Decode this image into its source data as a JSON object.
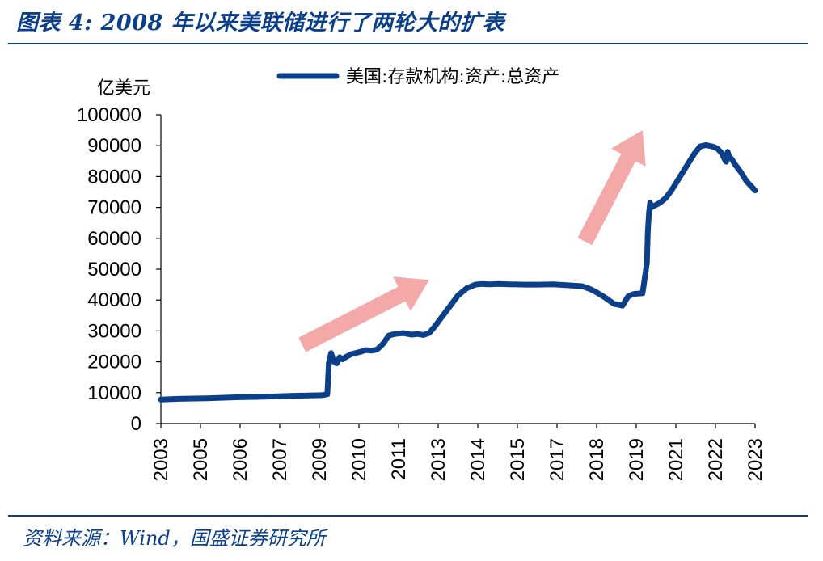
{
  "header": {
    "caption": "图表 4:  2008 年以来美联储进行了两轮大的扩表"
  },
  "footer": {
    "source": "资料来源：Wind，国盛证券研究所"
  },
  "colors": {
    "series": "#0b3f8a",
    "arrow": "#f4a9a9",
    "axis": "#000000",
    "accent": "#0b3f8a"
  },
  "chart_data": {
    "type": "line",
    "title": "",
    "ylabel": "亿美元",
    "xlabel": "",
    "ylim": [
      0,
      100000
    ],
    "yticks": [
      "0",
      "10000",
      "20000",
      "30000",
      "40000",
      "50000",
      "60000",
      "70000",
      "80000",
      "90000",
      "100000"
    ],
    "xticks": [
      "2003",
      "2005",
      "2006",
      "2007",
      "2009",
      "2010",
      "2011",
      "2013",
      "2014",
      "2015",
      "2017",
      "2018",
      "2019",
      "2021",
      "2022",
      "2023"
    ],
    "legend": "美国:存款机构:资产:总资产",
    "legend_position": "top-center",
    "grid": false,
    "series": [
      {
        "name": "美国:存款机构:资产:总资产",
        "x": [
          2002.9,
          2003.5,
          2004.5,
          2005.5,
          2006.5,
          2007.5,
          2008.5,
          2008.67,
          2008.72,
          2008.8,
          2008.85,
          2008.9,
          2009.0,
          2009.1,
          2009.2,
          2009.3,
          2009.5,
          2009.8,
          2010.0,
          2010.2,
          2010.4,
          2010.6,
          2010.8,
          2011.0,
          2011.3,
          2011.6,
          2011.8,
          2012.0,
          2012.2,
          2012.4,
          2012.6,
          2012.8,
          2013.0,
          2013.2,
          2013.5,
          2013.8,
          2014.0,
          2014.3,
          2014.6,
          2015.0,
          2015.5,
          2016.0,
          2016.5,
          2017.0,
          2017.5,
          2017.8,
          2018.0,
          2018.3,
          2018.6,
          2018.9,
          2019.1,
          2019.3,
          2019.6,
          2019.75,
          2019.78,
          2019.82,
          2019.86,
          2019.9,
          2020.0,
          2020.2,
          2020.4,
          2020.6,
          2020.8,
          2021.0,
          2021.2,
          2021.4,
          2021.6,
          2021.8,
          2022.0,
          2022.1,
          2022.2,
          2022.35,
          2022.45,
          2022.5,
          2022.55,
          2022.6,
          2022.7,
          2022.8,
          2023.0,
          2023.2,
          2023.4,
          2023.5
        ],
        "values": [
          7800,
          8000,
          8200,
          8500,
          8700,
          9000,
          9200,
          9500,
          19500,
          22800,
          21500,
          20000,
          19500,
          21500,
          20800,
          21500,
          22500,
          23200,
          23800,
          23600,
          24000,
          25800,
          28500,
          29000,
          29300,
          28800,
          29000,
          28700,
          29300,
          31500,
          34000,
          36500,
          39000,
          41500,
          43800,
          45000,
          45200,
          45100,
          45200,
          45100,
          45000,
          45000,
          45100,
          44800,
          44500,
          43500,
          42500,
          40800,
          38800,
          38200,
          41200,
          42000,
          42200,
          52000,
          62000,
          68000,
          71500,
          70000,
          70500,
          71500,
          73000,
          75500,
          78500,
          81500,
          84500,
          87500,
          89800,
          90200,
          89800,
          89500,
          89000,
          87500,
          85500,
          84800,
          88000,
          86500,
          85500,
          84000,
          81500,
          78500,
          76500,
          75500
        ]
      }
    ],
    "annotations": [
      {
        "type": "arrow",
        "from": [
          2007.8,
          25500
        ],
        "to": [
          2012.2,
          46500
        ]
      },
      {
        "type": "arrow",
        "from": [
          2017.6,
          59000
        ],
        "to": [
          2019.6,
          95000
        ]
      }
    ]
  }
}
